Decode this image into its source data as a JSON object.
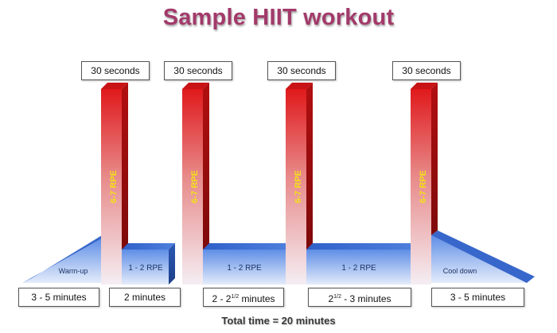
{
  "title": "Sample HIIT workout",
  "footer": "Total time = 20 minutes",
  "sprints": [
    {
      "duration": "30 seconds",
      "intensity": "6-7 RPE"
    },
    {
      "duration": "30 seconds",
      "intensity": "6-7 RPE"
    },
    {
      "duration": "30 seconds",
      "intensity": "6-7 RPE"
    },
    {
      "duration": "30 seconds",
      "intensity": "6-7 RPE"
    }
  ],
  "phases": [
    {
      "label": "Warm-up",
      "duration_main": "3 - 5 minutes",
      "duration_sup": "",
      "duration_tail": ""
    },
    {
      "label": "1 - 2 RPE",
      "duration_main": "2 minutes",
      "duration_sup": "",
      "duration_tail": ""
    },
    {
      "label": "1 - 2 RPE",
      "duration_main": "2 - 2",
      "duration_sup": "1/2",
      "duration_tail": " minutes"
    },
    {
      "label": "1 - 2 RPE",
      "duration_main": "2",
      "duration_sup": "1/2",
      "duration_tail": " - 3 minutes"
    },
    {
      "label": "Cool down",
      "duration_main": "3 - 5 minutes",
      "duration_sup": "",
      "duration_tail": ""
    }
  ],
  "colors": {
    "title": "#a23a6a",
    "sprint_red": "#e0191b",
    "sprint_dark": "#8e0d0d",
    "rest_blue": "#4f7fd9",
    "rest_light": "#dbe7fb",
    "rpe_text": "#f2e11a"
  }
}
